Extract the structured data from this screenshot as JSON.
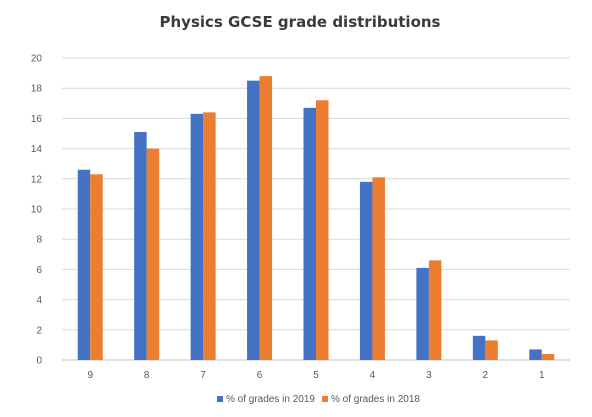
{
  "chart_data": {
    "type": "bar",
    "title": "Physics GCSE grade distributions",
    "xlabel": "",
    "ylabel": "",
    "categories": [
      "9",
      "8",
      "7",
      "6",
      "5",
      "4",
      "3",
      "2",
      "1"
    ],
    "series": [
      {
        "name": "% of grades in 2019",
        "color": "#4472C4",
        "values": [
          12.6,
          15.1,
          16.3,
          18.5,
          16.7,
          11.8,
          6.1,
          1.6,
          0.7
        ]
      },
      {
        "name": "% of grades in 2018",
        "color": "#ED7D31",
        "values": [
          12.3,
          14.0,
          16.4,
          18.8,
          17.2,
          12.1,
          6.6,
          1.3,
          0.4
        ]
      }
    ],
    "ylim": [
      0,
      20
    ],
    "yticks": [
      0,
      2,
      4,
      6,
      8,
      10,
      12,
      14,
      16,
      18,
      20
    ],
    "grid": true,
    "legend_position": "bottom"
  }
}
